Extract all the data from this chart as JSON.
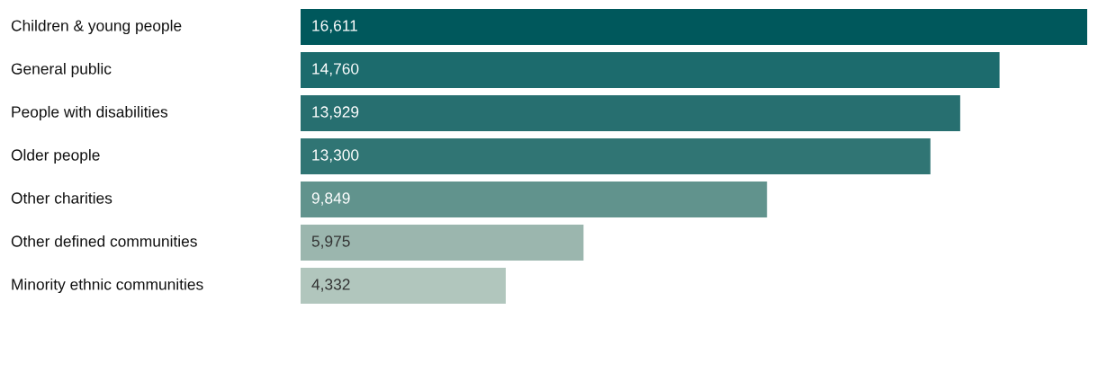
{
  "chart_data": {
    "type": "bar",
    "orientation": "horizontal",
    "categories": [
      "Children & young people",
      "General public",
      "People with disabilities",
      "Older people",
      "Other charities",
      "Other defined communities",
      "Minority ethnic communities"
    ],
    "values": [
      16611,
      14760,
      13929,
      13300,
      9849,
      5975,
      4332
    ],
    "colors": [
      "#00585c",
      "#1c6b6d",
      "#276f70",
      "#307574",
      "#61938d",
      "#9bb6ae",
      "#b1c6bd"
    ],
    "value_labels": [
      "16,611",
      "14,760",
      "13,929",
      "13,300",
      "9,849",
      "5,975",
      "4,332"
    ],
    "tick_labels": false
  }
}
